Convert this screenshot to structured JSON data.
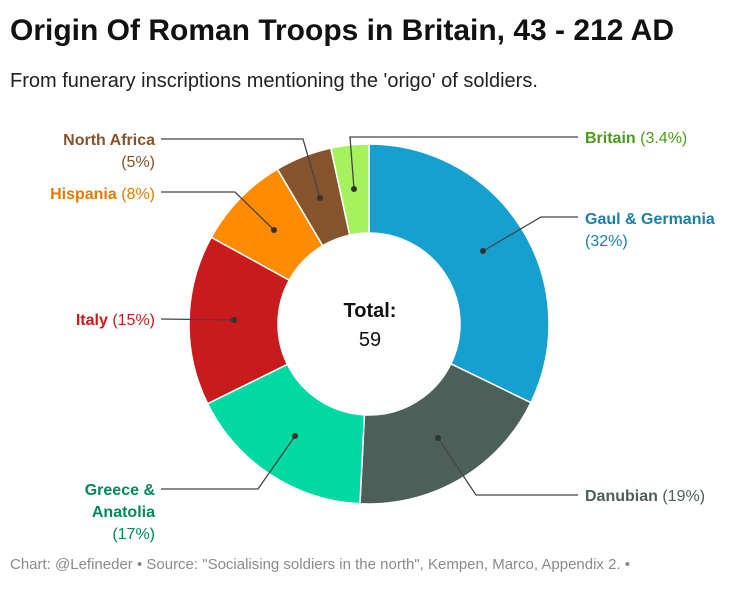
{
  "title": "Origin Of Roman Troops in Britain, 43 - 212 AD",
  "subtitle": "From funerary inscriptions mentioning the 'origo' of soldiers.",
  "footer": "Chart: @Lefineder • Source: \"Socialising soldiers in the north\", Kempen, Marco, Appendix 2. •",
  "center": {
    "label": "Total:",
    "value": "59"
  },
  "chart_data": {
    "type": "pie",
    "donut": true,
    "title": "Origin Of Roman Troops in Britain, 43 - 212 AD",
    "subtitle": "From funerary inscriptions mentioning the 'origo' of soldiers.",
    "total": 59,
    "slices": [
      {
        "name": "Gaul & Germania",
        "name_lines": [
          "Gaul & Germania"
        ],
        "pct_label": "(32%)",
        "value": 32.2,
        "color": "#16a0d0"
      },
      {
        "name": "Danubian",
        "name_lines": [
          "Danubian"
        ],
        "pct_label": "(19%)",
        "value": 18.6,
        "color": "#4d5f59"
      },
      {
        "name": "Greece & Anatolia",
        "name_lines": [
          "Greece &",
          "Anatolia"
        ],
        "pct_label": "(17%)",
        "value": 16.9,
        "color": "#00d9a1"
      },
      {
        "name": "Italy",
        "name_lines": [
          "Italy"
        ],
        "pct_label": "(15%)",
        "value": 15.3,
        "color": "#c91b1b"
      },
      {
        "name": "Hispania",
        "name_lines": [
          "Hispania"
        ],
        "pct_label": "(8%)",
        "value": 8.5,
        "color": "#ff8c00"
      },
      {
        "name": "North Africa",
        "name_lines": [
          "North Africa"
        ],
        "pct_label": "(5%)",
        "value": 5.1,
        "color": "#85532c"
      },
      {
        "name": "Britain",
        "name_lines": [
          "Britain"
        ],
        "pct_label": "(3.4%)",
        "value": 3.4,
        "color": "#a4f25d"
      }
    ],
    "label_colors": {
      "Gaul & Germania": "#1a7fa8",
      "Danubian": "#4d5f59",
      "Greece & Anatolia": "#00885f",
      "Italy": "#c91b1b",
      "Hispania": "#e67a00",
      "North Africa": "#85532c",
      "Britain": "#4a9c1a"
    }
  }
}
